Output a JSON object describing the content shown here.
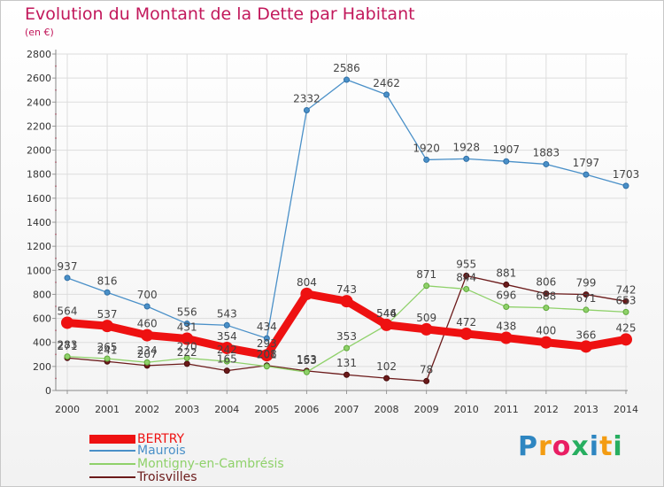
{
  "title": "Evolution du Montant de la Dette par Habitant",
  "unit": "(en €)",
  "logo": "Proxiti",
  "chart_data": {
    "type": "line",
    "title": "Evolution du Montant de la Dette par Habitant",
    "ylabel": "(en €)",
    "xlabel": "",
    "x": [
      "2000",
      "2001",
      "2002",
      "2003",
      "2004",
      "2005",
      "2006",
      "2007",
      "2008",
      "2009",
      "2010",
      "2011",
      "2012",
      "2013",
      "2014"
    ],
    "yticks": [
      0,
      200,
      400,
      600,
      800,
      1000,
      1200,
      1400,
      1600,
      1800,
      2000,
      2200,
      2400,
      2600,
      2800
    ],
    "ylim": [
      0,
      2800
    ],
    "grid": true,
    "legend_position": "bottom-left",
    "series": [
      {
        "name": "BERTRY",
        "color": "#ee1111",
        "values": [
          564,
          537,
          460,
          431,
          354,
          293,
          804,
          743,
          546,
          509,
          472,
          438,
          400,
          366,
          425
        ]
      },
      {
        "name": "Maurois",
        "color": "#4a90c8",
        "values": [
          937,
          816,
          700,
          556,
          543,
          434,
          2332,
          2586,
          2462,
          1920,
          1928,
          1907,
          1883,
          1797,
          1703
        ]
      },
      {
        "name": "Montigny-en-Cambrésis",
        "color": "#8fd16a",
        "values": [
          283,
          265,
          234,
          270,
          242,
          201,
          153,
          353,
          544,
          871,
          844,
          696,
          688,
          671,
          653
        ]
      },
      {
        "name": "Troisvilles",
        "color": "#6b1a1a",
        "values": [
          271,
          241,
          207,
          222,
          165,
          208,
          163,
          131,
          102,
          78,
          955,
          881,
          806,
          799,
          742
        ]
      }
    ]
  }
}
